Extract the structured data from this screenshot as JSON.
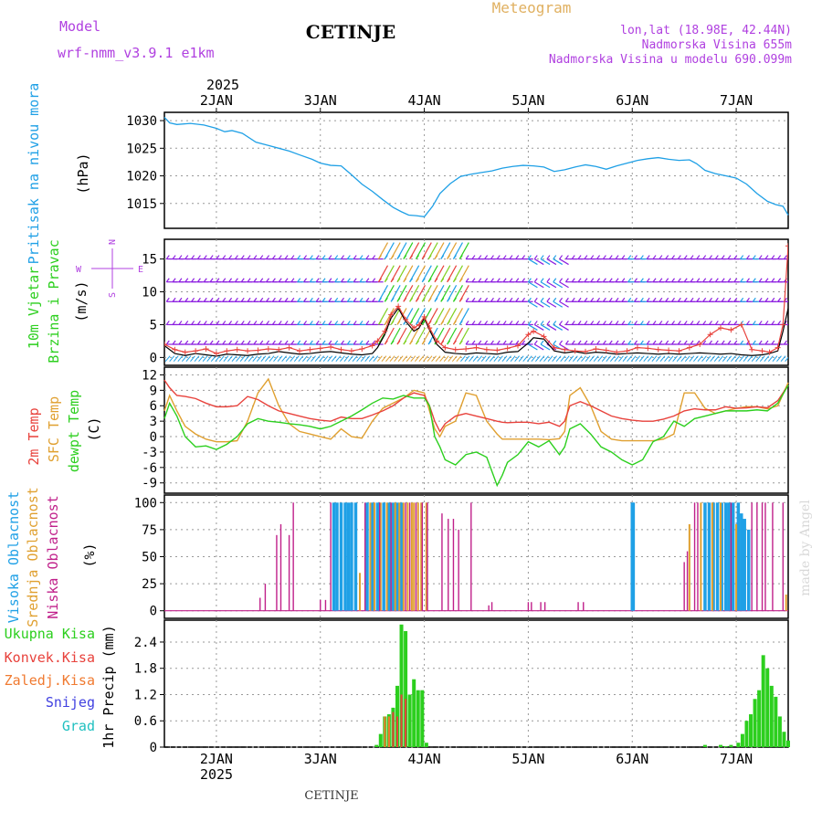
{
  "header": {
    "model_label": "Model",
    "model_name": "wrf-nmm_v3.9.1 e1km",
    "station": "CETINJE",
    "product": "Meteogram",
    "coords": "lon,lat (18.98E, 42.44N)",
    "altitude": "Nadmorska Visina 655m",
    "model_altitude": "Nadmorska Visina u modelu 690.099m",
    "year_top": "2025",
    "year_bottom": "2025",
    "footer_station": "CETINJE",
    "watermark": "made by Angel"
  },
  "colors": {
    "pressure": "#1fa0e6",
    "temp2m": "#e8423c",
    "sfc": "#e0a030",
    "dewpt": "#2ccf1e",
    "cloud_high": "#1fa0e6",
    "cloud_mid": "#e0a030",
    "cloud_low": "#c0208a",
    "precip_total": "#2ccf1e",
    "precip_conv": "#e8423c",
    "precip_frozen": "#f07a30",
    "snow": "#4040e0",
    "graupel": "#20c0c0",
    "purple_text": "#b040e0",
    "wind_level": "#8c1ee0",
    "wind_gust": "#e8423c"
  },
  "chart_data": [
    {
      "type": "line",
      "name": "pressure",
      "ylabel": [
        "Pritisak na nivou mora",
        "(hPa)"
      ],
      "ylim": [
        1010.5,
        1031.5
      ],
      "yticks": [
        1015,
        1020,
        1025,
        1030
      ],
      "x_day_ticks": [
        "2JAN",
        "3JAN",
        "4JAN",
        "5JAN",
        "6JAN",
        "7JAN"
      ],
      "x": [
        1.5,
        1.55,
        1.62,
        1.75,
        1.88,
        2.0,
        2.08,
        2.15,
        2.25,
        2.38,
        2.5,
        2.6,
        2.7,
        2.8,
        2.92,
        3.0,
        3.1,
        3.2,
        3.3,
        3.4,
        3.5,
        3.6,
        3.7,
        3.78,
        3.85,
        3.92,
        4.0,
        4.08,
        4.15,
        4.25,
        4.35,
        4.45,
        4.55,
        4.65,
        4.75,
        4.85,
        4.95,
        5.05,
        5.15,
        5.25,
        5.35,
        5.45,
        5.55,
        5.65,
        5.75,
        5.85,
        5.95,
        6.05,
        6.15,
        6.25,
        6.35,
        6.45,
        6.55,
        6.62,
        6.7,
        6.8,
        6.9,
        7.0,
        7.1,
        7.2,
        7.3,
        7.38,
        7.45,
        7.5
      ],
      "series": [
        {
          "values": [
            1030.6,
            1029.6,
            1029.3,
            1029.5,
            1029.2,
            1028.6,
            1028.0,
            1028.2,
            1027.7,
            1026.1,
            1025.5,
            1025.0,
            1024.5,
            1023.8,
            1023.0,
            1022.3,
            1021.9,
            1021.8,
            1020.2,
            1018.5,
            1017.2,
            1015.7,
            1014.3,
            1013.5,
            1012.9,
            1012.8,
            1012.6,
            1014.5,
            1016.8,
            1018.6,
            1019.9,
            1020.3,
            1020.6,
            1020.9,
            1021.4,
            1021.7,
            1021.9,
            1021.8,
            1021.6,
            1020.8,
            1021.1,
            1021.6,
            1022.0,
            1021.7,
            1021.2,
            1021.8,
            1022.3,
            1022.8,
            1023.1,
            1023.3,
            1023.0,
            1022.8,
            1022.9,
            1022.2,
            1021.0,
            1020.4,
            1020.0,
            1019.6,
            1018.5,
            1016.8,
            1015.4,
            1014.8,
            1014.5,
            1012.9
          ]
        }
      ]
    },
    {
      "type": "line",
      "name": "wind",
      "ylabel": [
        "10m Vjetar",
        "Brzina i Pravac",
        "(m/s)"
      ],
      "compass": {
        "n": "N",
        "s": "S",
        "e": "E",
        "w": "W"
      },
      "ylim": [
        -1.2,
        18
      ],
      "yticks": [
        0,
        5,
        10,
        15
      ],
      "barb_levels": [
        15.0,
        11.5,
        8.5,
        5.0,
        2.0
      ],
      "x": [
        1.5,
        1.6,
        1.7,
        1.8,
        1.9,
        2.0,
        2.1,
        2.2,
        2.3,
        2.4,
        2.5,
        2.6,
        2.7,
        2.8,
        2.9,
        3.0,
        3.1,
        3.2,
        3.3,
        3.4,
        3.5,
        3.55,
        3.62,
        3.68,
        3.75,
        3.82,
        3.9,
        3.95,
        4.0,
        4.05,
        4.12,
        4.2,
        4.3,
        4.4,
        4.5,
        4.6,
        4.7,
        4.8,
        4.9,
        5.0,
        5.05,
        5.15,
        5.25,
        5.35,
        5.45,
        5.55,
        5.65,
        5.75,
        5.85,
        5.95,
        6.05,
        6.15,
        6.25,
        6.35,
        6.45,
        6.55,
        6.65,
        6.75,
        6.85,
        6.95,
        7.05,
        7.15,
        7.25,
        7.32,
        7.4,
        7.45,
        7.5
      ],
      "series": [
        {
          "values": [
            1.8,
            0.6,
            0.3,
            0.6,
            0.4,
            0.2,
            0.5,
            0.4,
            0.3,
            0.5,
            0.6,
            0.9,
            0.7,
            0.5,
            0.6,
            0.8,
            0.9,
            0.7,
            0.5,
            0.4,
            0.6,
            1.5,
            3.5,
            6.0,
            7.5,
            5.5,
            4.0,
            4.5,
            6.0,
            4.2,
            2.0,
            0.8,
            0.6,
            0.5,
            0.7,
            0.6,
            0.5,
            0.8,
            0.9,
            2.2,
            3.0,
            2.8,
            1.0,
            0.7,
            0.9,
            0.6,
            0.8,
            0.7,
            0.5,
            0.6,
            0.7,
            0.6,
            0.5,
            0.6,
            0.5,
            0.6,
            0.7,
            0.6,
            0.5,
            0.6,
            0.4,
            0.3,
            0.4,
            0.6,
            1.0,
            4.0,
            7.5
          ]
        },
        {
          "values": [
            2.0,
            1.2,
            0.8,
            1.0,
            1.3,
            0.6,
            1.0,
            1.2,
            1.0,
            1.1,
            1.3,
            1.2,
            1.5,
            1.0,
            1.2,
            1.4,
            1.6,
            1.2,
            1.0,
            1.3,
            1.8,
            2.5,
            4.0,
            6.5,
            7.8,
            5.8,
            4.5,
            5.0,
            6.2,
            4.5,
            2.5,
            1.5,
            1.2,
            1.3,
            1.5,
            1.2,
            1.1,
            1.4,
            1.8,
            3.5,
            4.0,
            3.2,
            1.5,
            1.2,
            1.0,
            0.9,
            1.3,
            1.1,
            0.8,
            1.0,
            1.5,
            1.4,
            1.2,
            1.1,
            1.0,
            1.5,
            2.0,
            3.5,
            4.5,
            4.2,
            5.0,
            1.2,
            1.0,
            0.8,
            1.5,
            5.0,
            17.0
          ]
        }
      ]
    },
    {
      "type": "line",
      "name": "temperature",
      "ylabel": [
        "2m Temp",
        "SFC Temp",
        "dewpt Temp",
        "(C)"
      ],
      "ylim": [
        -11,
        13.5
      ],
      "yticks": [
        -9,
        -6,
        -3,
        0,
        3,
        6,
        9,
        12
      ],
      "x": [
        1.5,
        1.55,
        1.62,
        1.7,
        1.8,
        1.9,
        2.0,
        2.1,
        2.2,
        2.3,
        2.4,
        2.5,
        2.6,
        2.7,
        2.8,
        2.9,
        3.0,
        3.1,
        3.2,
        3.3,
        3.4,
        3.5,
        3.6,
        3.7,
        3.8,
        3.9,
        4.0,
        4.05,
        4.1,
        4.15,
        4.2,
        4.3,
        4.4,
        4.5,
        4.6,
        4.7,
        4.75,
        4.8,
        4.9,
        5.0,
        5.1,
        5.2,
        5.3,
        5.35,
        5.4,
        5.5,
        5.6,
        5.7,
        5.8,
        5.9,
        6.0,
        6.1,
        6.2,
        6.3,
        6.4,
        6.5,
        6.6,
        6.7,
        6.8,
        6.9,
        7.0,
        7.1,
        7.2,
        7.3,
        7.4,
        7.5
      ],
      "series": [
        {
          "name": "2m Temp",
          "values": [
            11.0,
            9.5,
            8.0,
            7.8,
            7.4,
            6.5,
            5.8,
            5.8,
            6.0,
            7.8,
            7.2,
            6.0,
            5.0,
            4.5,
            4.0,
            3.5,
            3.2,
            3.0,
            3.8,
            3.5,
            3.5,
            4.2,
            5.0,
            6.0,
            7.5,
            8.5,
            8.0,
            6.0,
            3.0,
            1.0,
            2.5,
            4.0,
            4.5,
            4.0,
            3.5,
            3.0,
            2.8,
            2.7,
            2.8,
            2.8,
            2.5,
            2.8,
            2.0,
            3.0,
            6.0,
            6.8,
            6.0,
            5.0,
            4.0,
            3.5,
            3.2,
            3.0,
            3.0,
            3.4,
            4.0,
            5.0,
            5.4,
            5.2,
            5.2,
            5.8,
            5.5,
            5.6,
            5.8,
            5.6,
            7.0,
            10.0
          ]
        },
        {
          "name": "SFC Temp",
          "values": [
            5.0,
            8.0,
            5.0,
            2.0,
            0.5,
            -0.5,
            -1.0,
            -1.0,
            -0.8,
            3.0,
            8.5,
            11.2,
            6.0,
            2.5,
            1.0,
            0.5,
            0.0,
            -0.5,
            1.5,
            0.0,
            -0.3,
            3.0,
            5.5,
            6.5,
            7.5,
            9.0,
            8.5,
            5.0,
            1.5,
            0.0,
            2.0,
            3.0,
            8.5,
            8.0,
            3.0,
            0.5,
            -0.5,
            -0.5,
            -0.5,
            -0.5,
            -0.5,
            -0.6,
            -0.4,
            1.0,
            8.0,
            9.5,
            6.0,
            1.0,
            -0.5,
            -0.8,
            -0.8,
            -0.8,
            -0.8,
            -0.5,
            0.5,
            8.5,
            8.5,
            5.5,
            4.5,
            5.0,
            5.5,
            5.8,
            5.8,
            5.4,
            6.0,
            10.5
          ]
        },
        {
          "name": "dewpt Temp",
          "values": [
            3.5,
            6.5,
            4.0,
            0.0,
            -2.0,
            -1.8,
            -2.5,
            -1.5,
            0.0,
            2.5,
            3.5,
            3.0,
            2.8,
            2.5,
            2.3,
            2.0,
            1.5,
            2.0,
            3.0,
            4.0,
            5.2,
            6.5,
            7.5,
            7.3,
            8.0,
            7.5,
            7.5,
            6.0,
            0.0,
            -2.0,
            -4.5,
            -5.5,
            -3.5,
            -3.0,
            -4.0,
            -9.5,
            -7.5,
            -5.0,
            -3.5,
            -1.0,
            -2.0,
            -0.8,
            -3.5,
            -2.0,
            1.5,
            2.5,
            0.5,
            -2.0,
            -3.0,
            -4.5,
            -5.5,
            -4.5,
            -1.0,
            0.0,
            3.0,
            2.0,
            3.5,
            4.0,
            4.5,
            5.0,
            5.0,
            5.0,
            5.2,
            5.0,
            6.5,
            10.0
          ]
        }
      ]
    },
    {
      "type": "bar",
      "name": "clouds",
      "ylabel": [
        "Visoka Oblacnost",
        "Srednja Oblacnost",
        "Niska Oblacnost",
        "(%)"
      ],
      "ylim": [
        -7,
        107
      ],
      "yticks": [
        0,
        25,
        50,
        75,
        100
      ],
      "series": [
        {
          "name": "high",
          "x": [
            3.13,
            3.16,
            3.2,
            3.24,
            3.27,
            3.3,
            3.34,
            3.45,
            3.5,
            3.55,
            3.61,
            3.66,
            3.7,
            3.74,
            3.78,
            6.0,
            6.01,
            6.7,
            6.74,
            6.78,
            6.82,
            6.86,
            6.9,
            6.93,
            6.97,
            7.02,
            7.05,
            7.08,
            7.12
          ],
          "values": [
            100,
            100,
            100,
            100,
            100,
            100,
            100,
            100,
            100,
            100,
            100,
            100,
            100,
            100,
            100,
            100,
            100,
            100,
            100,
            100,
            100,
            100,
            100,
            100,
            100,
            100,
            90,
            85,
            75
          ]
        },
        {
          "name": "mid",
          "x": [
            3.38,
            3.48,
            3.52,
            3.58,
            3.64,
            3.72,
            3.76,
            3.8,
            3.84,
            3.88,
            3.9,
            3.94,
            3.97,
            4.02,
            6.55,
            6.66,
            6.77,
            6.85,
            7.0,
            7.48
          ],
          "values": [
            35,
            100,
            100,
            100,
            100,
            100,
            100,
            100,
            100,
            100,
            100,
            100,
            100,
            100,
            80,
            100,
            100,
            100,
            80,
            15
          ]
        },
        {
          "name": "low",
          "x": [
            2.42,
            2.47,
            2.58,
            2.62,
            2.7,
            2.74,
            3.0,
            3.05,
            3.1,
            3.43,
            3.57,
            3.68,
            3.82,
            3.86,
            3.92,
            3.98,
            4.03,
            4.17,
            4.23,
            4.28,
            4.33,
            4.45,
            4.62,
            4.65,
            5.0,
            5.03,
            5.12,
            5.16,
            5.48,
            5.53,
            6.5,
            6.53,
            6.6,
            6.63,
            6.95,
            7.15,
            7.2,
            7.25,
            7.28,
            7.35,
            7.45
          ],
          "values": [
            12,
            25,
            70,
            80,
            70,
            100,
            10,
            10,
            100,
            100,
            100,
            100,
            100,
            100,
            100,
            100,
            100,
            90,
            85,
            85,
            75,
            100,
            5,
            8,
            8,
            8,
            8,
            8,
            8,
            8,
            45,
            55,
            100,
            100,
            100,
            100,
            100,
            100,
            100,
            100,
            100
          ]
        }
      ]
    },
    {
      "type": "bar",
      "name": "precipitation",
      "ylabel": [
        "Ukupna Kisa",
        "Konvek.Kisa",
        "Zaledj.Kisa",
        "Snijeg",
        "Grad",
        "1hr Precip (mm)"
      ],
      "ylim": [
        0,
        2.9
      ],
      "yticks": [
        0,
        0.6,
        1.2,
        1.8,
        2.4
      ],
      "x_day_ticks": [
        "2JAN",
        "3JAN",
        "4JAN",
        "5JAN",
        "6JAN",
        "7JAN"
      ],
      "x": [
        3.54,
        3.58,
        3.62,
        3.66,
        3.7,
        3.74,
        3.78,
        3.82,
        3.86,
        3.9,
        3.94,
        3.98,
        4.02,
        6.7,
        6.85,
        6.9,
        6.95,
        7.02,
        7.06,
        7.1,
        7.14,
        7.18,
        7.22,
        7.26,
        7.3,
        7.34,
        7.38,
        7.42,
        7.46,
        7.5
      ],
      "series": [
        {
          "name": "Ukupna Kisa",
          "values": [
            0.05,
            0.3,
            0.7,
            0.75,
            0.9,
            1.4,
            2.8,
            2.65,
            1.2,
            1.55,
            1.3,
            1.3,
            0.1,
            0.05,
            0.05,
            0.02,
            0.05,
            0.1,
            0.3,
            0.6,
            0.75,
            1.1,
            1.3,
            2.1,
            1.8,
            1.4,
            1.15,
            0.7,
            0.35,
            0.15
          ]
        },
        {
          "name": "Konvek.Kisa",
          "values": [
            0,
            0,
            0,
            0.6,
            0.8,
            0.7,
            1.2,
            1.1,
            0,
            0,
            0,
            0,
            0,
            0,
            0,
            0,
            0,
            0,
            0,
            0,
            0,
            0,
            0,
            0,
            0,
            0,
            0,
            0,
            0,
            0
          ]
        },
        {
          "name": "Zaledj.Kisa",
          "values": [
            0,
            0,
            0.7,
            0.7,
            0,
            0,
            0,
            0,
            0,
            0,
            0,
            0,
            0,
            0,
            0,
            0,
            0,
            0,
            0,
            0,
            0,
            0,
            0,
            0,
            0,
            0,
            0,
            0,
            0,
            0
          ]
        }
      ]
    }
  ]
}
